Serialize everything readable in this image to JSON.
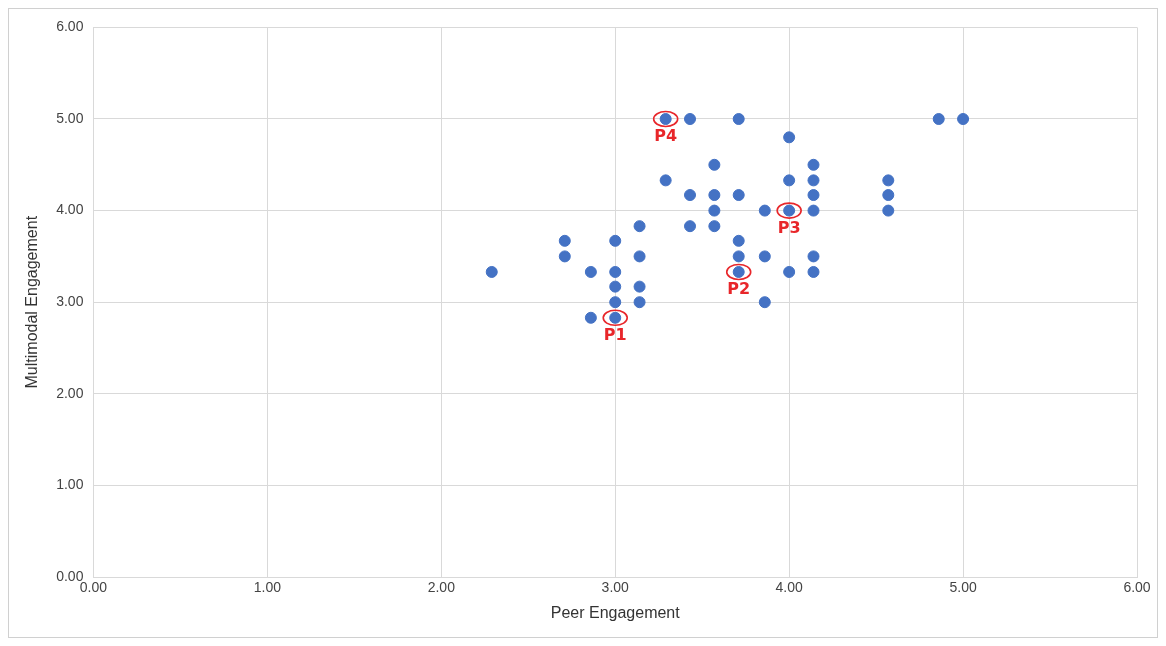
{
  "chart_data": {
    "type": "scatter",
    "xlabel": "Peer Engagement",
    "ylabel": "Multimodal Engagement",
    "x": [
      2.29,
      2.71,
      2.71,
      2.86,
      2.86,
      3.0,
      3.0,
      3.0,
      3.0,
      3.0,
      3.14,
      3.14,
      3.14,
      3.14,
      3.29,
      3.29,
      3.43,
      3.43,
      3.43,
      3.57,
      3.57,
      3.57,
      3.57,
      3.71,
      3.71,
      3.71,
      3.71,
      3.71,
      3.86,
      3.86,
      3.86,
      4.0,
      4.0,
      4.0,
      4.0,
      4.14,
      4.14,
      4.14,
      4.14,
      4.14,
      4.14,
      4.57,
      4.57,
      4.57,
      4.86,
      5.0
    ],
    "values": [
      3.33,
      3.67,
      3.5,
      3.33,
      2.83,
      3.67,
      3.33,
      3.17,
      3.0,
      2.83,
      3.83,
      3.5,
      3.17,
      3.0,
      5.0,
      4.33,
      5.0,
      4.17,
      3.83,
      4.5,
      4.17,
      4.0,
      3.83,
      5.0,
      4.17,
      3.67,
      3.5,
      3.33,
      4.0,
      3.5,
      3.0,
      4.8,
      4.33,
      4.0,
      3.33,
      4.5,
      4.33,
      4.17,
      4.0,
      3.5,
      3.33,
      4.33,
      4.17,
      4.0,
      5.0,
      5.0
    ],
    "color": "#4472c4",
    "marker": "circle",
    "grid": true,
    "xlim": [
      0,
      6
    ],
    "ylim": [
      0,
      6
    ],
    "xticks": [
      {
        "value": 0,
        "label": "0.00"
      },
      {
        "value": 1,
        "label": "1.00"
      },
      {
        "value": 2,
        "label": "2.00"
      },
      {
        "value": 3,
        "label": "3.00"
      },
      {
        "value": 4,
        "label": "4.00"
      },
      {
        "value": 5,
        "label": "5.00"
      },
      {
        "value": 6,
        "label": "6.00"
      }
    ],
    "yticks": [
      {
        "value": 0,
        "label": "0.00"
      },
      {
        "value": 1,
        "label": "1.00"
      },
      {
        "value": 2,
        "label": "2.00"
      },
      {
        "value": 3,
        "label": "3.00"
      },
      {
        "value": 4,
        "label": "4.00"
      },
      {
        "value": 5,
        "label": "5.00"
      },
      {
        "value": 6,
        "label": "6.00"
      }
    ],
    "annotations": [
      {
        "text": "P1",
        "x": 3.0,
        "y": 2.83
      },
      {
        "text": "P2",
        "x": 3.71,
        "y": 3.33
      },
      {
        "text": "P3",
        "x": 4.0,
        "y": 4.0
      },
      {
        "text": "P4",
        "x": 3.29,
        "y": 5.0
      }
    ]
  }
}
